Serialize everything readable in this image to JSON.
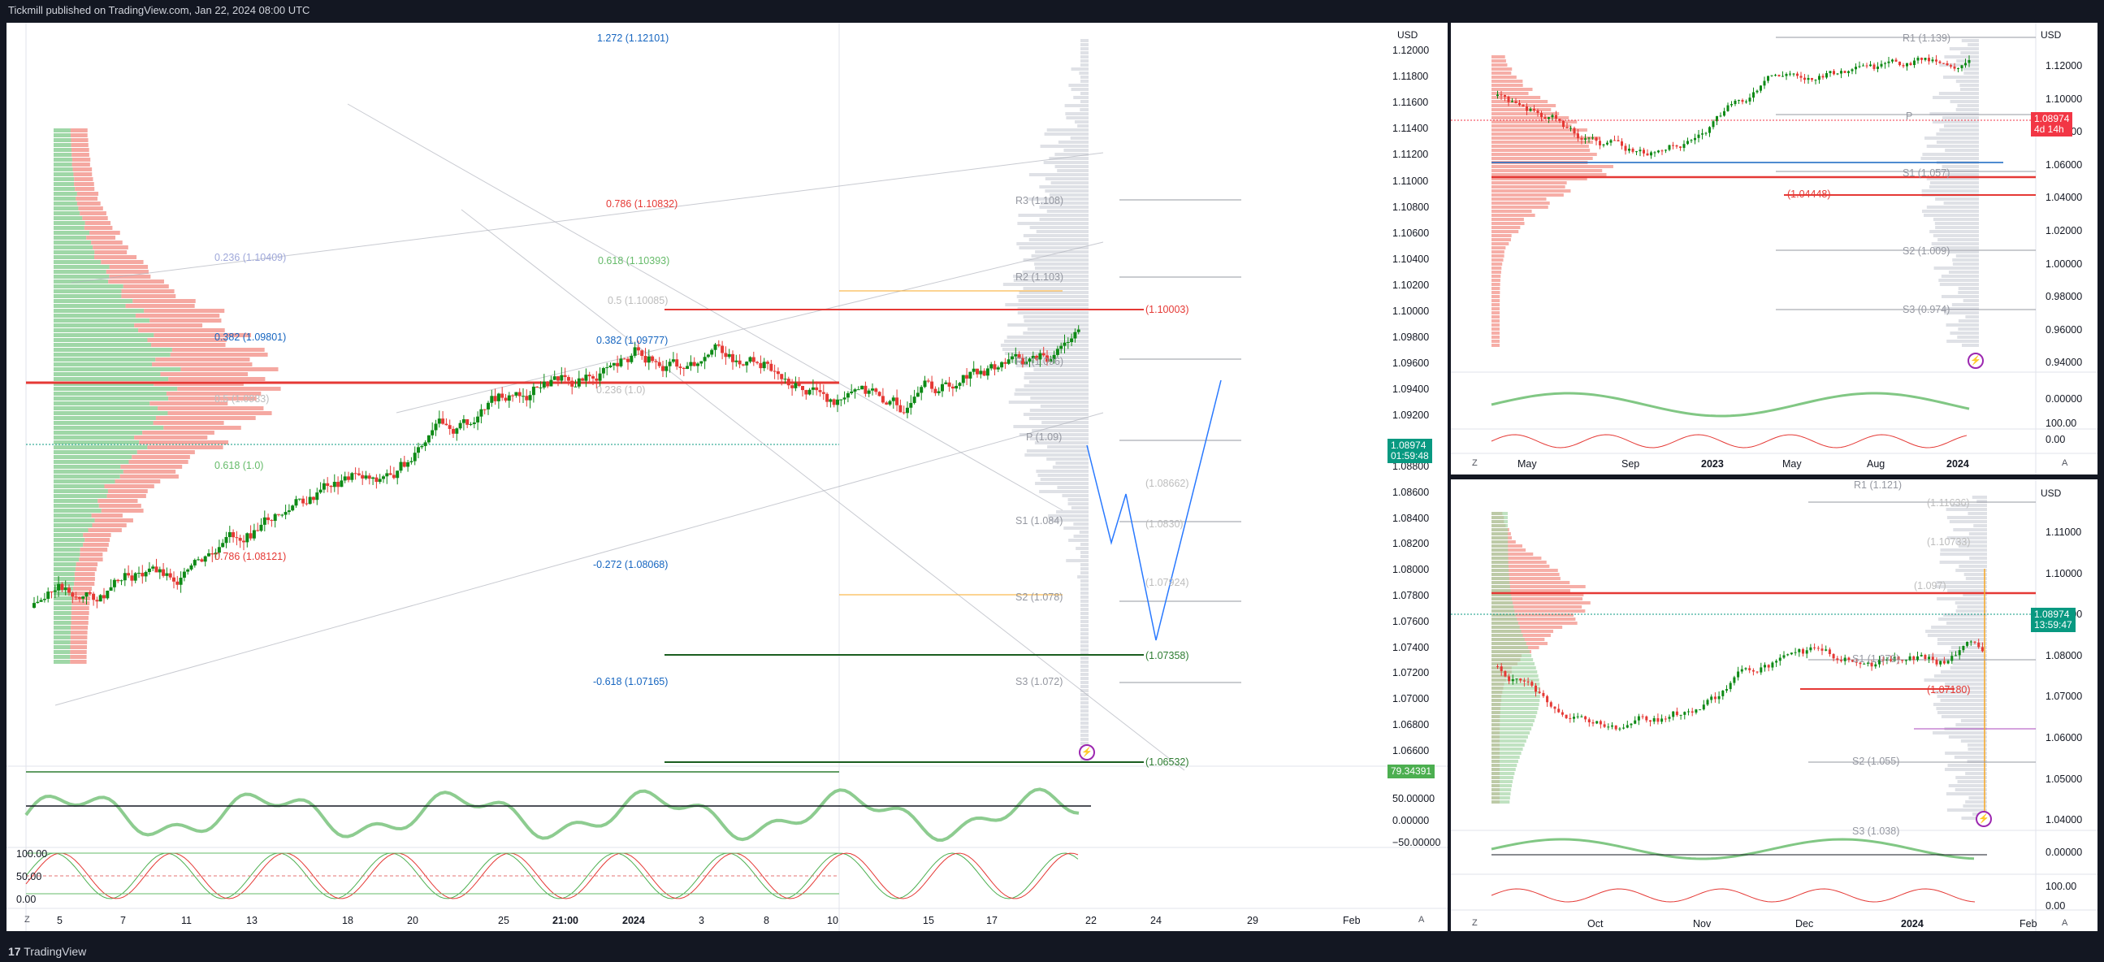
{
  "header": {
    "published": "Tickmill published on TradingView.com, Jan 22, 2024 08:00 UTC"
  },
  "footer": {
    "brand": "TradingView",
    "logo_glyph": "17"
  },
  "colors": {
    "up": "#089981",
    "down": "#f23645",
    "bull": "#0e8a16",
    "bear": "#e53935",
    "fib_blue": "#1565c0",
    "pivot_grey": "#9598a1",
    "bg": "#131722"
  },
  "main": {
    "currency": "USD",
    "y_ticks": [
      "1.12000",
      "1.11800",
      "1.11600",
      "1.11400",
      "1.11200",
      "1.11000",
      "1.10800",
      "1.10600",
      "1.10400",
      "1.10200",
      "1.10000",
      "1.09800",
      "1.09600",
      "1.09400",
      "1.09200",
      "1.08800",
      "1.08600",
      "1.08400",
      "1.08200",
      "1.08000",
      "1.07800",
      "1.07600",
      "1.07400",
      "1.07200",
      "1.07000",
      "1.06800",
      "1.06600"
    ],
    "price_tag": "1.08974",
    "countdown": "01:59:48",
    "osc_tag": "79.34391",
    "osc_ticks": [
      "50.00000",
      "0.00000",
      "−50.00000"
    ],
    "stoch_ticks": [
      "100.00",
      "50.00",
      "0.00"
    ],
    "x_ticks": [
      "5",
      "7",
      "11",
      "13",
      "18",
      "20",
      "25",
      "21:00",
      "2024",
      "3",
      "8",
      "10",
      "15",
      "17",
      "22",
      "24",
      "29",
      "Feb"
    ],
    "corner_left": "Z",
    "corner_right": "A",
    "annotations": {
      "fib_1272": "1.272 (1.12101)",
      "fib_0786_red": "0.786 (1.10832)",
      "fib_0618_green": "0.618 (1.10393)",
      "fib_05": "0.5 (1.10085)",
      "fib_0382_blue": "0.382 (1.09777)",
      "fib_0236": "0.236 (1.0)",
      "fib_0236_left": "0.236 (1.10409)",
      "fib_0382_left": "0.382 (1.09801)",
      "fib_05_left": "0.5 (1.0933)",
      "fib_0618_left": "0.618 (1.0)",
      "fib_0786_left": "0.786 (1.08121)",
      "red_level": "(1.10003)",
      "r3": "R3 (1.108)",
      "r2": "R2 (1.103)",
      "r1": "R1 (1.096)",
      "p": "P (1.09)",
      "s1": "S1 (1.084)",
      "s2": "S2 (1.078)",
      "s3": "S3 (1.072)",
      "neg0272": "-0.272 (1.08068)",
      "neg0618": "-0.618 (1.07165)",
      "l1": "(1.08662)",
      "l2": "(1.0830)",
      "l3": "(1.07924)",
      "green_level": "(1.07358)",
      "green_level2": "(1.06532)"
    }
  },
  "top_right": {
    "currency": "USD",
    "y_ticks": [
      "1.12000",
      "1.10000",
      "1.08000",
      "1.06000",
      "1.04000",
      "1.02000",
      "1.00000",
      "0.98000",
      "0.96000",
      "0.94000"
    ],
    "price_tag": "1.08974",
    "countdown": "4d 14h",
    "osc_ticks": [
      "0.00000"
    ],
    "stoch_ticks": [
      "100.00",
      "0.00"
    ],
    "x_ticks": [
      "May",
      "Sep",
      "2023",
      "May",
      "Aug",
      "2024"
    ],
    "corner_left": "Z",
    "corner_right": "A",
    "annotations": {
      "r1": "R1 (1.139)",
      "red_level": "(1.04448)",
      "pivot": "P",
      "s1": "S1 (1.057)",
      "s2": "S2 (1.009)",
      "s3": "S3 (0.974)"
    }
  },
  "bottom_right": {
    "currency": "USD",
    "y_ticks": [
      "1.11000",
      "1.10000",
      "1.09000",
      "1.08000",
      "1.07000",
      "1.06000",
      "1.05000",
      "1.04000"
    ],
    "price_tag": "1.08974",
    "countdown": "13:59:47",
    "osc_ticks": [
      "0.00000"
    ],
    "stoch_ticks": [
      "100.00",
      "0.00"
    ],
    "x_ticks": [
      "Oct",
      "Nov",
      "Dec",
      "2024",
      "Feb"
    ],
    "corner_left": "Z",
    "corner_right": "A",
    "annotations": {
      "r1": "R1 (1.121)",
      "l1": "(1.11636)",
      "l2": "(1.10733)",
      "l3": "(1.097)",
      "s1": "S1 (1.079)",
      "red_level": "(1.07180)",
      "s2": "S2 (1.055)",
      "s3": "S3 (1.038)"
    }
  }
}
